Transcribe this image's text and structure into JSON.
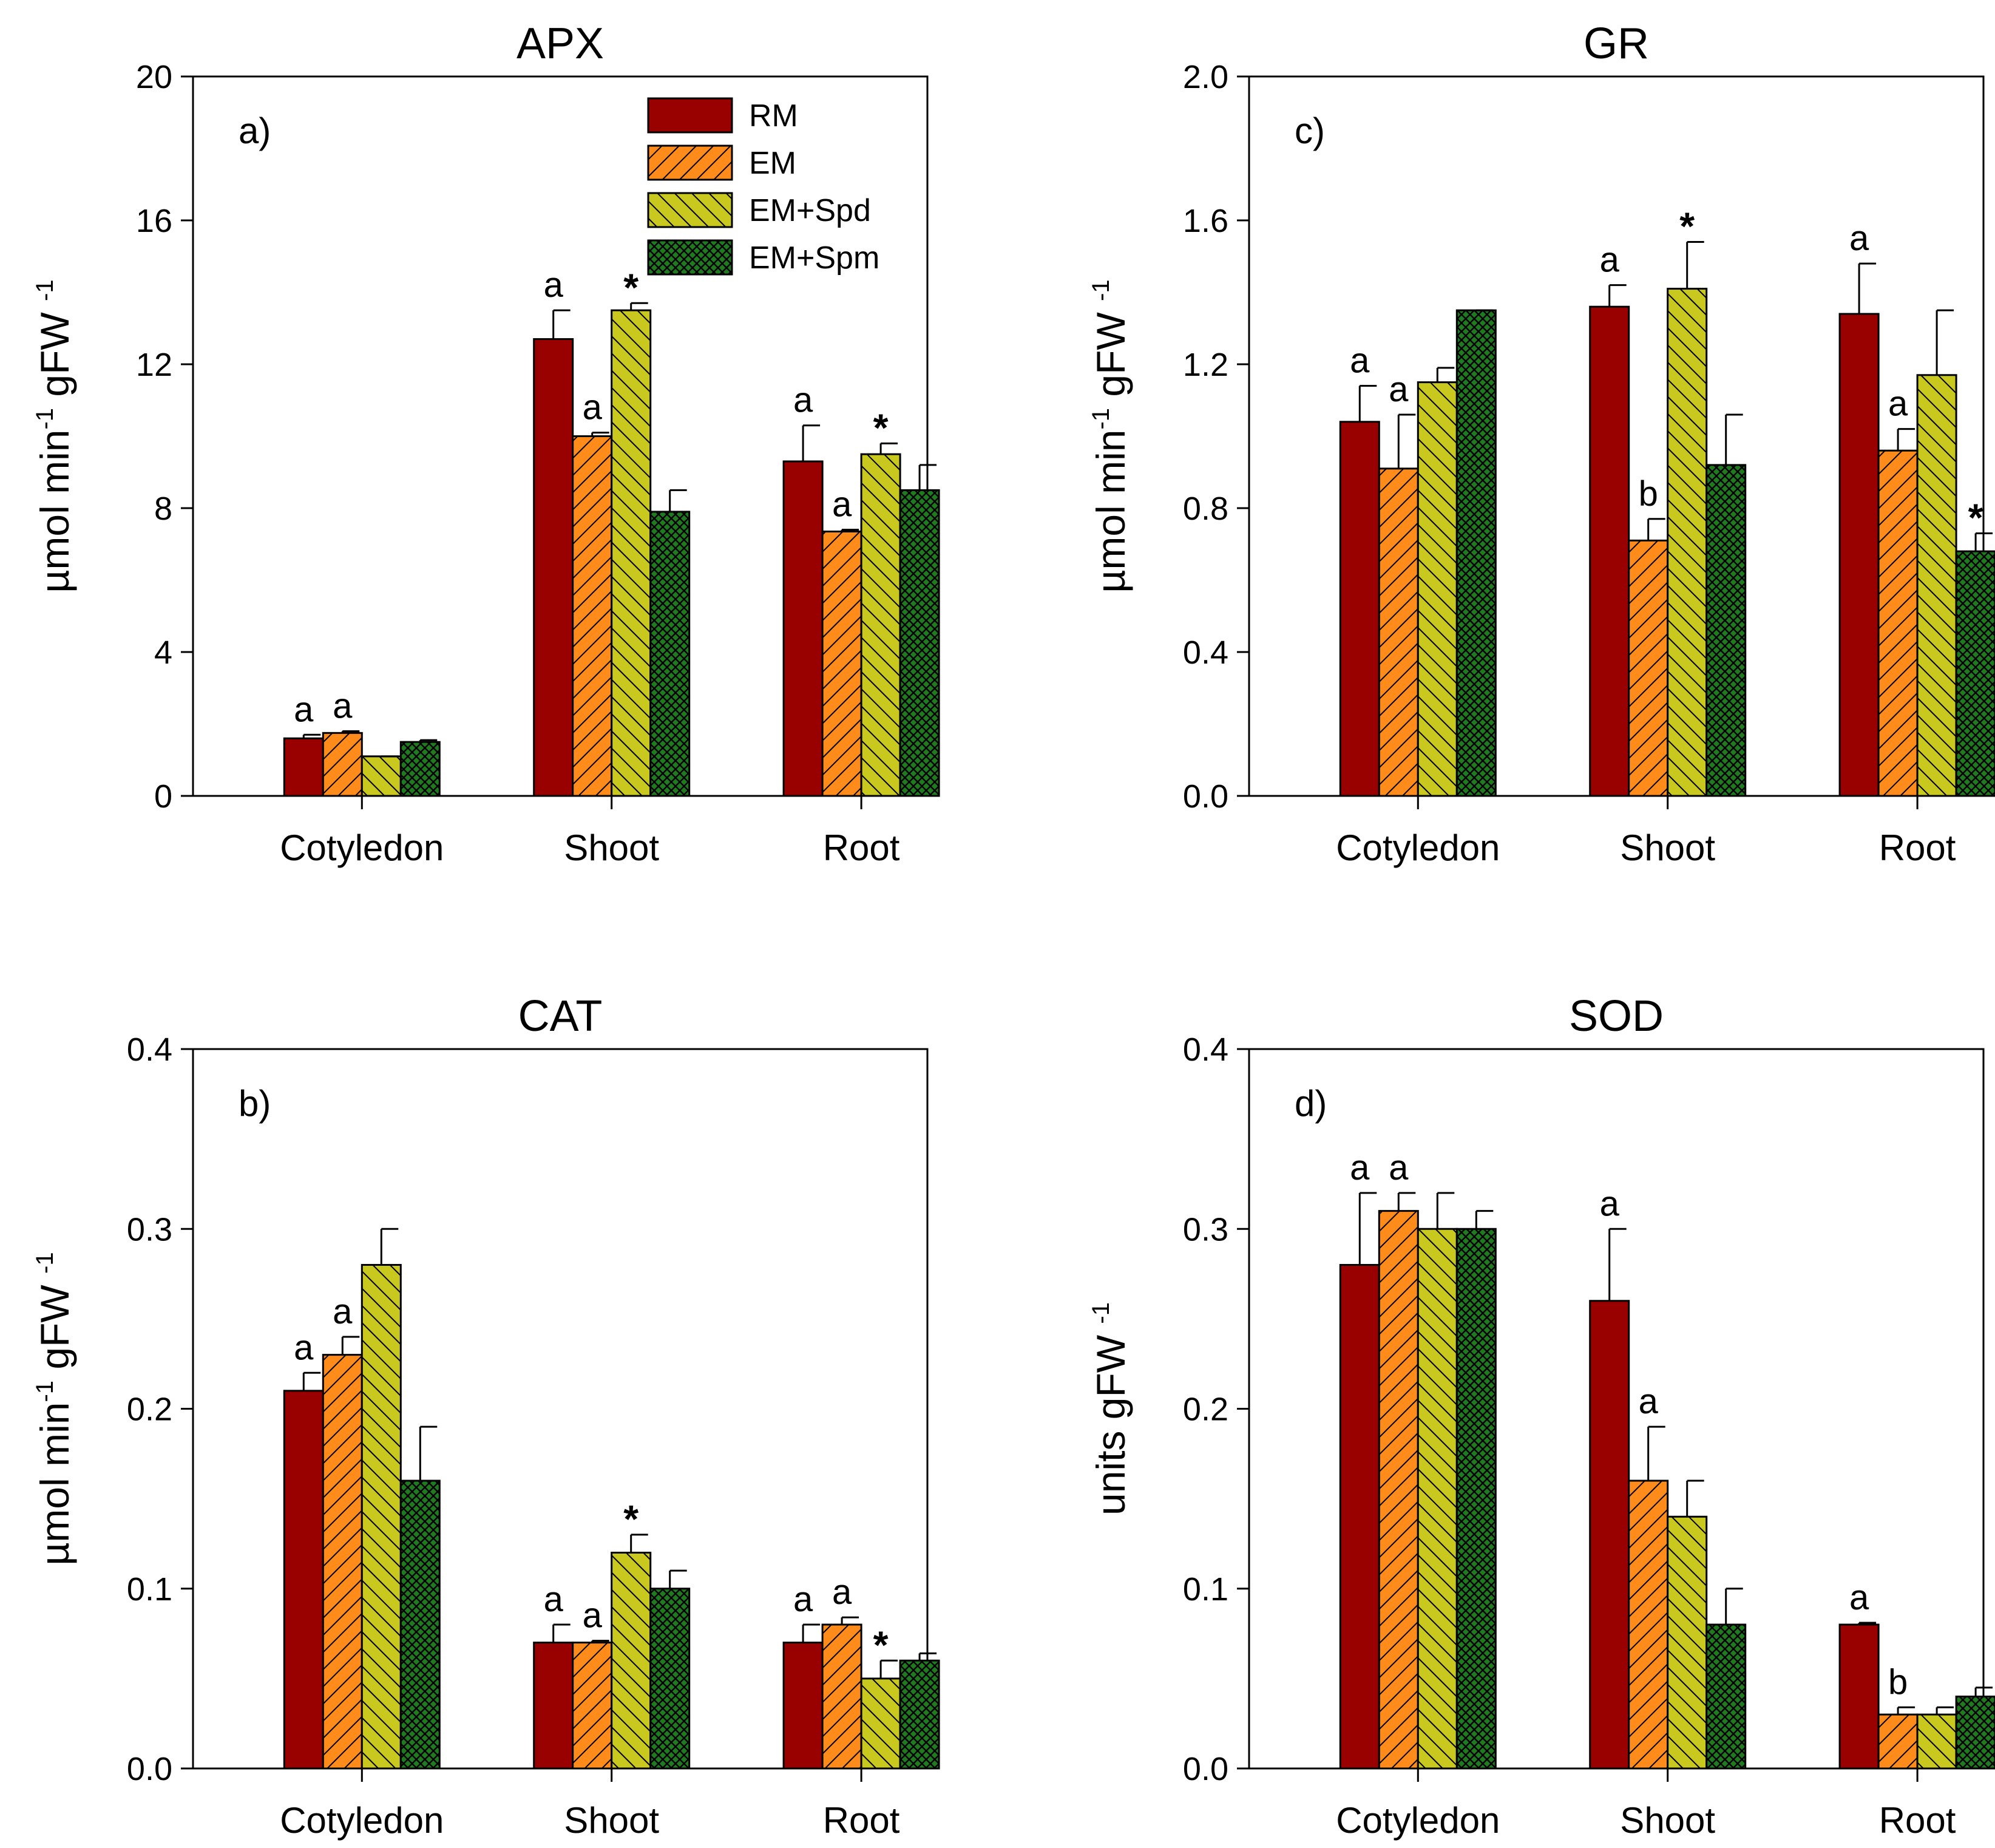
{
  "figure": {
    "colors": {
      "RM": "#990000",
      "EM": "#ff8c1a",
      "EM+Spd": "#c8c81e",
      "EM+Spm": "#1e7b1e"
    },
    "legend": [
      "RM",
      "EM",
      "EM+Spd",
      "EM+Spm"
    ]
  },
  "chart_data": [
    {
      "type": "bar",
      "panel": "a)",
      "title": "APX",
      "ylabel": "µmol min-1 gFW -1",
      "ylabel_parts": [
        "µmol min",
        "-1",
        " gFW ",
        "-1"
      ],
      "categories": [
        "Cotyledon",
        "Shoot",
        "Root"
      ],
      "ylim": [
        0,
        20
      ],
      "yticks": [
        0,
        4,
        8,
        12,
        16,
        20
      ],
      "ytick_labels": [
        "0",
        "4",
        "8",
        "12",
        "16",
        "20"
      ],
      "legend_position": "top-right",
      "series": [
        {
          "name": "RM",
          "values": [
            1.6,
            12.7,
            9.3
          ],
          "errors": [
            0.1,
            0.8,
            1.0
          ]
        },
        {
          "name": "EM",
          "values": [
            1.75,
            10.0,
            7.35
          ],
          "errors": [
            0.05,
            0.1,
            0.05
          ]
        },
        {
          "name": "EM+Spd",
          "values": [
            1.1,
            13.5,
            9.5
          ],
          "errors": [
            0.0,
            0.2,
            0.3
          ]
        },
        {
          "name": "EM+Spm",
          "values": [
            1.5,
            7.9,
            8.5
          ],
          "errors": [
            0.05,
            0.6,
            0.7
          ]
        }
      ],
      "annotations": [
        {
          "cat": 0,
          "series": 0,
          "text": "a"
        },
        {
          "cat": 0,
          "series": 1,
          "text": "a"
        },
        {
          "cat": 1,
          "series": 0,
          "text": "a"
        },
        {
          "cat": 1,
          "series": 1,
          "text": "a"
        },
        {
          "cat": 1,
          "series": 2,
          "text": "*"
        },
        {
          "cat": 2,
          "series": 0,
          "text": "a"
        },
        {
          "cat": 2,
          "series": 1,
          "text": "a"
        },
        {
          "cat": 2,
          "series": 2,
          "text": "*"
        }
      ]
    },
    {
      "type": "bar",
      "panel": "b)",
      "title": "CAT",
      "ylabel": "µmol min-1 gFW -1",
      "ylabel_parts": [
        "µmol min",
        "-1",
        " gFW ",
        "-1"
      ],
      "categories": [
        "Cotyledon",
        "Shoot",
        "Root"
      ],
      "ylim": [
        0,
        0.4
      ],
      "yticks": [
        0,
        0.1,
        0.2,
        0.3,
        0.4
      ],
      "ytick_labels": [
        "0.0",
        "0.1",
        "0.2",
        "0.3",
        "0.4"
      ],
      "series": [
        {
          "name": "RM",
          "values": [
            0.21,
            0.07,
            0.07
          ],
          "errors": [
            0.01,
            0.01,
            0.01
          ]
        },
        {
          "name": "EM",
          "values": [
            0.23,
            0.07,
            0.08
          ],
          "errors": [
            0.01,
            0.001,
            0.004
          ]
        },
        {
          "name": "EM+Spd",
          "values": [
            0.28,
            0.12,
            0.05
          ],
          "errors": [
            0.02,
            0.01,
            0.01
          ]
        },
        {
          "name": "EM+Spm",
          "values": [
            0.16,
            0.1,
            0.06
          ],
          "errors": [
            0.03,
            0.01,
            0.004
          ]
        }
      ],
      "annotations": [
        {
          "cat": 0,
          "series": 0,
          "text": "a"
        },
        {
          "cat": 0,
          "series": 1,
          "text": "a"
        },
        {
          "cat": 1,
          "series": 0,
          "text": "a"
        },
        {
          "cat": 1,
          "series": 1,
          "text": "a"
        },
        {
          "cat": 1,
          "series": 2,
          "text": "*"
        },
        {
          "cat": 2,
          "series": 0,
          "text": "a"
        },
        {
          "cat": 2,
          "series": 1,
          "text": "a"
        },
        {
          "cat": 2,
          "series": 2,
          "text": "*"
        }
      ]
    },
    {
      "type": "bar",
      "panel": "c)",
      "title": "GR",
      "ylabel": "µmol min-1 gFW -1",
      "ylabel_parts": [
        "µmol min",
        "-1",
        " gFW ",
        "-1"
      ],
      "categories": [
        "Cotyledon",
        "Shoot",
        "Root"
      ],
      "ylim": [
        0,
        2.0
      ],
      "yticks": [
        0,
        0.4,
        0.8,
        1.2,
        1.6,
        2.0
      ],
      "ytick_labels": [
        "0.0",
        "0.4",
        "0.8",
        "1.2",
        "1.6",
        "2.0"
      ],
      "series": [
        {
          "name": "RM",
          "values": [
            1.04,
            1.36,
            1.34
          ],
          "errors": [
            0.1,
            0.06,
            0.14
          ]
        },
        {
          "name": "EM",
          "values": [
            0.91,
            0.71,
            0.96
          ],
          "errors": [
            0.15,
            0.06,
            0.06
          ]
        },
        {
          "name": "EM+Spd",
          "values": [
            1.15,
            1.41,
            1.17
          ],
          "errors": [
            0.04,
            0.13,
            0.18
          ]
        },
        {
          "name": "EM+Spm",
          "values": [
            1.35,
            0.92,
            0.68
          ],
          "errors": [
            0.0,
            0.14,
            0.05
          ]
        }
      ],
      "annotations": [
        {
          "cat": 0,
          "series": 0,
          "text": "a"
        },
        {
          "cat": 0,
          "series": 1,
          "text": "a"
        },
        {
          "cat": 1,
          "series": 0,
          "text": "a"
        },
        {
          "cat": 1,
          "series": 1,
          "text": "b"
        },
        {
          "cat": 1,
          "series": 2,
          "text": "*"
        },
        {
          "cat": 2,
          "series": 0,
          "text": "a"
        },
        {
          "cat": 2,
          "series": 1,
          "text": "a"
        },
        {
          "cat": 2,
          "series": 3,
          "text": "*"
        }
      ]
    },
    {
      "type": "bar",
      "panel": "d)",
      "title": "SOD",
      "ylabel": "units gFW -1",
      "ylabel_parts": [
        "units gFW ",
        "-1"
      ],
      "categories": [
        "Cotyledon",
        "Shoot",
        "Root"
      ],
      "ylim": [
        0,
        0.4
      ],
      "yticks": [
        0,
        0.1,
        0.2,
        0.3,
        0.4
      ],
      "ytick_labels": [
        "0.0",
        "0.1",
        "0.2",
        "0.3",
        "0.4"
      ],
      "series": [
        {
          "name": "RM",
          "values": [
            0.28,
            0.26,
            0.08
          ],
          "errors": [
            0.04,
            0.04,
            0.001
          ]
        },
        {
          "name": "EM",
          "values": [
            0.31,
            0.16,
            0.03
          ],
          "errors": [
            0.01,
            0.03,
            0.004
          ]
        },
        {
          "name": "EM+Spd",
          "values": [
            0.3,
            0.14,
            0.03
          ],
          "errors": [
            0.02,
            0.02,
            0.004
          ]
        },
        {
          "name": "EM+Spm",
          "values": [
            0.3,
            0.08,
            0.04
          ],
          "errors": [
            0.01,
            0.02,
            0.005
          ]
        }
      ],
      "annotations": [
        {
          "cat": 0,
          "series": 0,
          "text": "a"
        },
        {
          "cat": 0,
          "series": 1,
          "text": "a"
        },
        {
          "cat": 1,
          "series": 0,
          "text": "a"
        },
        {
          "cat": 1,
          "series": 1,
          "text": "a"
        },
        {
          "cat": 2,
          "series": 0,
          "text": "a"
        },
        {
          "cat": 2,
          "series": 1,
          "text": "b"
        }
      ]
    }
  ]
}
